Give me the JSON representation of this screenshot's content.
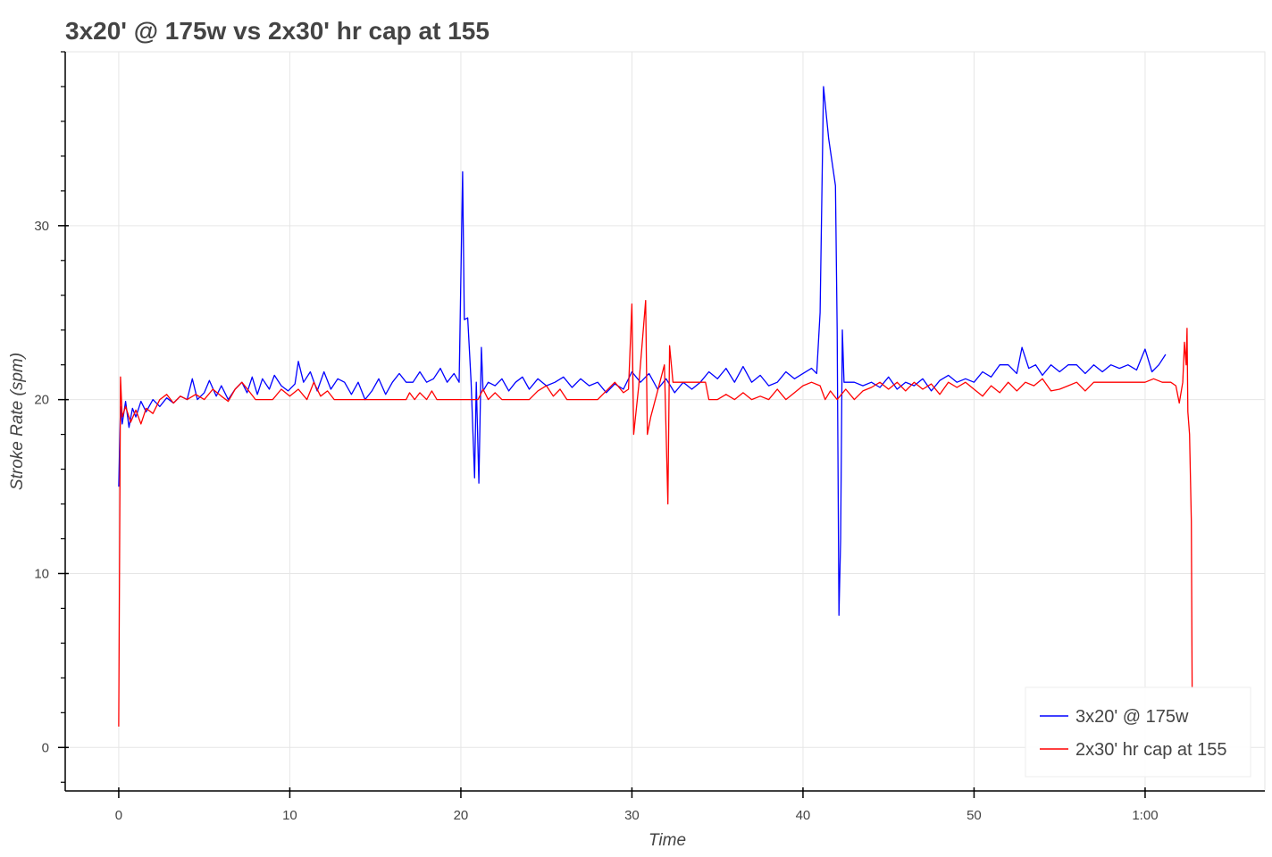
{
  "chart_data": {
    "type": "line",
    "title": "3x20' @ 175w vs 2x30' hr cap at 155",
    "xlabel": "Time",
    "ylabel": "Stroke Rate (spm)",
    "xlim": [
      -3.13,
      67
    ],
    "ylim": [
      -2.5,
      40
    ],
    "grid": true,
    "legend_placement": "bottom-right",
    "x_ticks": [
      0,
      10,
      20,
      30,
      40,
      50,
      60
    ],
    "x_tick_labels": [
      "0",
      "10",
      "20",
      "30",
      "40",
      "50",
      "1:00"
    ],
    "y_ticks": [
      0,
      10,
      20,
      30
    ],
    "y_tick_labels": [
      "0",
      "10",
      "20",
      "30"
    ],
    "y_minor_step": 2,
    "series": [
      {
        "name": "3x20' @ 175w",
        "color": "#0000ff",
        "points": [
          [
            0,
            15
          ],
          [
            0.1,
            19.6
          ],
          [
            0.2,
            18.6
          ],
          [
            0.4,
            19.9
          ],
          [
            0.6,
            18.4
          ],
          [
            0.8,
            19.5
          ],
          [
            1.0,
            19.0
          ],
          [
            1.3,
            19.9
          ],
          [
            1.6,
            19.3
          ],
          [
            2.0,
            20.0
          ],
          [
            2.4,
            19.6
          ],
          [
            2.8,
            20.1
          ],
          [
            3.2,
            19.8
          ],
          [
            3.6,
            20.2
          ],
          [
            4.0,
            20.0
          ],
          [
            4.3,
            21.2
          ],
          [
            4.6,
            20.0
          ],
          [
            5.0,
            20.4
          ],
          [
            5.3,
            21.1
          ],
          [
            5.7,
            20.2
          ],
          [
            6.0,
            20.8
          ],
          [
            6.4,
            20.0
          ],
          [
            6.8,
            20.6
          ],
          [
            7.2,
            21.0
          ],
          [
            7.5,
            20.4
          ],
          [
            7.8,
            21.3
          ],
          [
            8.1,
            20.3
          ],
          [
            8.4,
            21.2
          ],
          [
            8.8,
            20.6
          ],
          [
            9.1,
            21.4
          ],
          [
            9.5,
            20.8
          ],
          [
            9.9,
            20.5
          ],
          [
            10.3,
            20.9
          ],
          [
            10.5,
            22.2
          ],
          [
            10.8,
            21.0
          ],
          [
            11.2,
            21.6
          ],
          [
            11.6,
            20.5
          ],
          [
            12.0,
            21.6
          ],
          [
            12.4,
            20.6
          ],
          [
            12.8,
            21.2
          ],
          [
            13.2,
            21.0
          ],
          [
            13.6,
            20.3
          ],
          [
            14.0,
            21.0
          ],
          [
            14.4,
            20.0
          ],
          [
            14.8,
            20.5
          ],
          [
            15.2,
            21.2
          ],
          [
            15.6,
            20.3
          ],
          [
            16.0,
            21.0
          ],
          [
            16.4,
            21.5
          ],
          [
            16.8,
            21.0
          ],
          [
            17.2,
            21.0
          ],
          [
            17.6,
            21.6
          ],
          [
            18.0,
            21.0
          ],
          [
            18.4,
            21.2
          ],
          [
            18.8,
            21.8
          ],
          [
            19.2,
            21.0
          ],
          [
            19.6,
            21.5
          ],
          [
            19.9,
            21.0
          ],
          [
            20.1,
            33.1
          ],
          [
            20.2,
            24.6
          ],
          [
            20.4,
            24.7
          ],
          [
            20.6,
            21.0
          ],
          [
            20.8,
            15.5
          ],
          [
            20.9,
            21.0
          ],
          [
            21.05,
            15.2
          ],
          [
            21.2,
            23.0
          ],
          [
            21.3,
            20.5
          ],
          [
            21.6,
            21.0
          ],
          [
            22.0,
            20.8
          ],
          [
            22.4,
            21.2
          ],
          [
            22.8,
            20.5
          ],
          [
            23.2,
            21.0
          ],
          [
            23.6,
            21.3
          ],
          [
            24.0,
            20.6
          ],
          [
            24.5,
            21.2
          ],
          [
            25.0,
            20.8
          ],
          [
            25.5,
            21.0
          ],
          [
            26.0,
            21.3
          ],
          [
            26.5,
            20.7
          ],
          [
            27.0,
            21.2
          ],
          [
            27.5,
            20.8
          ],
          [
            28.0,
            21.0
          ],
          [
            28.5,
            20.4
          ],
          [
            29.0,
            20.9
          ],
          [
            29.5,
            20.6
          ],
          [
            30.0,
            21.6
          ],
          [
            30.5,
            21.0
          ],
          [
            31.0,
            21.5
          ],
          [
            31.5,
            20.6
          ],
          [
            32.0,
            21.2
          ],
          [
            32.5,
            20.4
          ],
          [
            33.0,
            21.0
          ],
          [
            33.5,
            20.6
          ],
          [
            34.0,
            21.0
          ],
          [
            34.5,
            21.6
          ],
          [
            35.0,
            21.2
          ],
          [
            35.5,
            21.8
          ],
          [
            36.0,
            21.0
          ],
          [
            36.5,
            21.9
          ],
          [
            37.0,
            21.0
          ],
          [
            37.5,
            21.4
          ],
          [
            38.0,
            20.8
          ],
          [
            38.5,
            21.0
          ],
          [
            39.0,
            21.6
          ],
          [
            39.5,
            21.2
          ],
          [
            40.0,
            21.5
          ],
          [
            40.5,
            21.8
          ],
          [
            40.8,
            21.5
          ],
          [
            41.0,
            25.0
          ],
          [
            41.2,
            38.0
          ],
          [
            41.5,
            35.0
          ],
          [
            41.9,
            32.3
          ],
          [
            42.0,
            24.0
          ],
          [
            42.1,
            7.6
          ],
          [
            42.2,
            12.0
          ],
          [
            42.3,
            24.0
          ],
          [
            42.4,
            21.0
          ],
          [
            43.0,
            21.0
          ],
          [
            43.5,
            20.8
          ],
          [
            44.0,
            21.0
          ],
          [
            44.5,
            20.7
          ],
          [
            45.0,
            21.3
          ],
          [
            45.5,
            20.6
          ],
          [
            46.0,
            21.0
          ],
          [
            46.5,
            20.8
          ],
          [
            47.0,
            21.2
          ],
          [
            47.5,
            20.5
          ],
          [
            48.0,
            21.1
          ],
          [
            48.5,
            21.4
          ],
          [
            49.0,
            21.0
          ],
          [
            49.5,
            21.2
          ],
          [
            50.0,
            21.0
          ],
          [
            50.5,
            21.6
          ],
          [
            51.0,
            21.3
          ],
          [
            51.5,
            22.0
          ],
          [
            52.0,
            22.0
          ],
          [
            52.5,
            21.5
          ],
          [
            52.8,
            23.0
          ],
          [
            53.2,
            21.8
          ],
          [
            53.6,
            22.0
          ],
          [
            54.0,
            21.4
          ],
          [
            54.5,
            22.0
          ],
          [
            55.0,
            21.6
          ],
          [
            55.5,
            22.0
          ],
          [
            56.0,
            22.0
          ],
          [
            56.5,
            21.5
          ],
          [
            57.0,
            22.0
          ],
          [
            57.5,
            21.6
          ],
          [
            58.0,
            22.0
          ],
          [
            58.5,
            21.8
          ],
          [
            59.0,
            22.0
          ],
          [
            59.5,
            21.7
          ],
          [
            60.0,
            22.9
          ],
          [
            60.4,
            21.6
          ],
          [
            60.8,
            22.0
          ],
          [
            61.2,
            22.6
          ]
        ]
      },
      {
        "name": "2x30' hr cap at 155",
        "color": "#ff0000",
        "points": [
          [
            0,
            1.2
          ],
          [
            0.1,
            21.3
          ],
          [
            0.2,
            19.0
          ],
          [
            0.4,
            19.6
          ],
          [
            0.7,
            18.7
          ],
          [
            1.0,
            19.4
          ],
          [
            1.3,
            18.6
          ],
          [
            1.6,
            19.5
          ],
          [
            2.0,
            19.2
          ],
          [
            2.4,
            20.0
          ],
          [
            2.8,
            20.3
          ],
          [
            3.2,
            19.8
          ],
          [
            3.6,
            20.2
          ],
          [
            4.0,
            20.0
          ],
          [
            4.5,
            20.3
          ],
          [
            5.0,
            20.0
          ],
          [
            5.5,
            20.6
          ],
          [
            6.0,
            20.2
          ],
          [
            6.4,
            19.9
          ],
          [
            6.8,
            20.6
          ],
          [
            7.2,
            21.0
          ],
          [
            7.6,
            20.5
          ],
          [
            8.0,
            20.0
          ],
          [
            9.0,
            20.0
          ],
          [
            9.5,
            20.6
          ],
          [
            10.0,
            20.2
          ],
          [
            10.5,
            20.6
          ],
          [
            11.0,
            20.0
          ],
          [
            11.4,
            21.0
          ],
          [
            11.8,
            20.2
          ],
          [
            12.2,
            20.5
          ],
          [
            12.6,
            20.0
          ],
          [
            13.0,
            20.0
          ],
          [
            14,
            20
          ],
          [
            15,
            20
          ],
          [
            16,
            20
          ],
          [
            16.8,
            20.0
          ],
          [
            17.0,
            20.4
          ],
          [
            17.3,
            20.0
          ],
          [
            17.6,
            20.4
          ],
          [
            18.0,
            20.0
          ],
          [
            18.3,
            20.5
          ],
          [
            18.6,
            20.0
          ],
          [
            19,
            20
          ],
          [
            20,
            20
          ],
          [
            21.0,
            20.0
          ],
          [
            21.3,
            20.6
          ],
          [
            21.6,
            20.0
          ],
          [
            22.0,
            20.4
          ],
          [
            22.4,
            20.0
          ],
          [
            23,
            20
          ],
          [
            24,
            20
          ],
          [
            24.5,
            20.5
          ],
          [
            25.0,
            20.8
          ],
          [
            25.4,
            20.2
          ],
          [
            25.8,
            20.6
          ],
          [
            26.2,
            20.0
          ],
          [
            27,
            20
          ],
          [
            28,
            20
          ],
          [
            28.5,
            20.5
          ],
          [
            29.0,
            21.0
          ],
          [
            29.5,
            20.4
          ],
          [
            29.8,
            20.6
          ],
          [
            30.0,
            25.5
          ],
          [
            30.1,
            18.0
          ],
          [
            30.4,
            20.8
          ],
          [
            30.8,
            25.7
          ],
          [
            30.9,
            18.0
          ],
          [
            31.1,
            19.0
          ],
          [
            31.5,
            20.5
          ],
          [
            31.9,
            22.0
          ],
          [
            32.1,
            14.0
          ],
          [
            32.2,
            23.1
          ],
          [
            32.4,
            21.0
          ],
          [
            33,
            21
          ],
          [
            34.3,
            21.0
          ],
          [
            34.5,
            20.0
          ],
          [
            35,
            20
          ],
          [
            35.5,
            20.3
          ],
          [
            36,
            20
          ],
          [
            36.5,
            20.4
          ],
          [
            37,
            20
          ],
          [
            37.5,
            20.2
          ],
          [
            38,
            20
          ],
          [
            38.5,
            20.6
          ],
          [
            39,
            20
          ],
          [
            39.5,
            20.4
          ],
          [
            40,
            20.8
          ],
          [
            40.5,
            21.0
          ],
          [
            41,
            20.8
          ],
          [
            41.3,
            20.0
          ],
          [
            41.6,
            20.5
          ],
          [
            42.0,
            20.0
          ],
          [
            42.5,
            20.6
          ],
          [
            43.0,
            20.0
          ],
          [
            43.5,
            20.5
          ],
          [
            44,
            20.7
          ],
          [
            44.5,
            21.0
          ],
          [
            45,
            20.6
          ],
          [
            45.5,
            21.0
          ],
          [
            46,
            20.5
          ],
          [
            46.5,
            21.0
          ],
          [
            47,
            20.6
          ],
          [
            47.5,
            20.9
          ],
          [
            48,
            20.3
          ],
          [
            48.5,
            21.0
          ],
          [
            49,
            20.7
          ],
          [
            49.5,
            21.0
          ],
          [
            50,
            20.6
          ],
          [
            50.5,
            20.2
          ],
          [
            51,
            20.8
          ],
          [
            51.5,
            20.4
          ],
          [
            52,
            21.0
          ],
          [
            52.5,
            20.5
          ],
          [
            53,
            21.0
          ],
          [
            53.5,
            20.8
          ],
          [
            54,
            21.2
          ],
          [
            54.5,
            20.5
          ],
          [
            55,
            20.6
          ],
          [
            55.5,
            20.8
          ],
          [
            56,
            21.0
          ],
          [
            56.5,
            20.5
          ],
          [
            57,
            21.0
          ],
          [
            57.5,
            21.0
          ],
          [
            58,
            21.0
          ],
          [
            59,
            21.0
          ],
          [
            60,
            21.0
          ],
          [
            60.5,
            21.2
          ],
          [
            61,
            21.0
          ],
          [
            61.5,
            21.0
          ],
          [
            61.8,
            20.8
          ],
          [
            62,
            19.8
          ],
          [
            62.2,
            21.0
          ],
          [
            62.3,
            23.3
          ],
          [
            62.4,
            22.0
          ],
          [
            62.45,
            24.1
          ],
          [
            62.5,
            19.3
          ],
          [
            62.6,
            18.0
          ],
          [
            62.7,
            13.0
          ],
          [
            62.75,
            3.4
          ]
        ]
      }
    ]
  }
}
